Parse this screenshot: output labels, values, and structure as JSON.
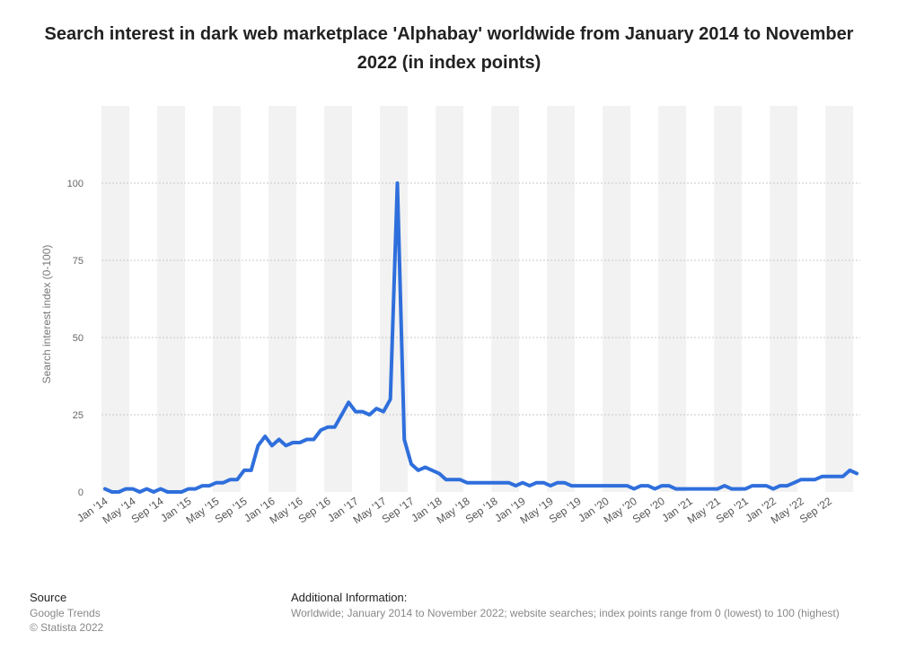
{
  "title": "Search interest in dark web marketplace 'Alphabay' worldwide from January 2014 to November 2022 (in index points)",
  "footer": {
    "source_label": "Source",
    "source_lines": [
      "Google Trends",
      "© Statista 2022"
    ],
    "info_label": "Additional Information:",
    "info_text": "Worldwide; January 2014 to November 2022; website searches; index points range from 0 (lowest) to 100 (highest)"
  },
  "chart_data": {
    "type": "line",
    "ylabel": "Search interest index (0-100)",
    "ylim": [
      0,
      125
    ],
    "yticks": [
      0,
      25,
      50,
      75,
      100
    ],
    "grid": true,
    "line_color": "#2f6fdc",
    "x_tick_labels": [
      "Jan '14",
      "May '14",
      "Sep '14",
      "Jan '15",
      "May '15",
      "Sep '15",
      "Jan '16",
      "May '16",
      "Sep '16",
      "Jan '17",
      "May '17",
      "Sep '17",
      "Jan '18",
      "May '18",
      "Sep '18",
      "Jan '19",
      "May '19",
      "Sep '19",
      "Jan '20",
      "May '20",
      "Sep '20",
      "Jan '21",
      "May '21",
      "Sep '21",
      "Jan '22",
      "May '22",
      "Sep '22"
    ],
    "x_start": "2014-01",
    "series": [
      {
        "values": [
          1,
          0,
          0,
          1,
          1,
          0,
          1,
          0,
          1,
          0,
          0,
          0,
          1,
          1,
          2,
          2,
          3,
          3,
          4,
          4,
          7,
          7,
          15,
          18,
          15,
          17,
          15,
          16,
          16,
          17,
          17,
          20,
          21,
          21,
          25,
          29,
          26,
          26,
          25,
          27,
          26,
          30,
          100,
          17,
          9,
          7,
          8,
          7,
          6,
          4,
          4,
          4,
          3,
          3,
          3,
          3,
          3,
          3,
          3,
          2,
          3,
          2,
          3,
          3,
          2,
          3,
          3,
          2,
          2,
          2,
          2,
          2,
          2,
          2,
          2,
          2,
          1,
          2,
          2,
          1,
          2,
          2,
          1,
          1,
          1,
          1,
          1,
          1,
          1,
          2,
          1,
          1,
          1,
          2,
          2,
          2,
          1,
          2,
          2,
          3,
          4,
          4,
          4,
          5,
          5,
          5,
          5,
          7,
          6
        ]
      }
    ]
  }
}
